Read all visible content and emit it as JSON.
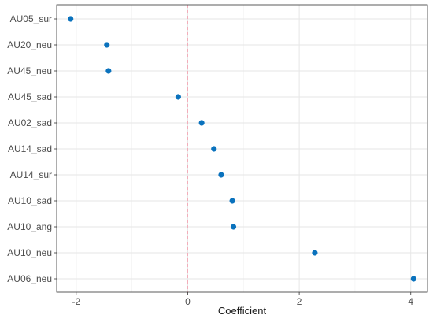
{
  "chart_data": {
    "type": "scatter",
    "title": "",
    "xlabel": "Coefficient",
    "ylabel": "",
    "xlim": [
      -2.35,
      4.3
    ],
    "x_ticks": [
      -2,
      0,
      2,
      4
    ],
    "x_tick_labels": [
      "-2",
      "0",
      "2",
      "4"
    ],
    "grid": true,
    "reference_line": {
      "x": 0,
      "style": "dashed",
      "color": "#f4a6b4"
    },
    "point_color": "#0a72bd",
    "categories": [
      "AU05_sur",
      "AU20_neu",
      "AU45_neu",
      "AU45_sad",
      "AU02_sad",
      "AU14_sad",
      "AU14_sur",
      "AU10_sad",
      "AU10_ang",
      "AU10_neu",
      "AU06_neu"
    ],
    "series": [
      {
        "values": [
          -2.1,
          -1.45,
          -1.42,
          -0.17,
          0.25,
          0.47,
          0.6,
          0.8,
          0.82,
          2.28,
          4.05
        ]
      }
    ]
  }
}
